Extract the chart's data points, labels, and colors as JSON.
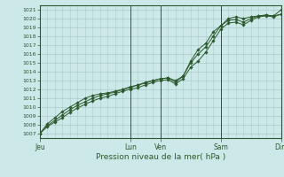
{
  "title": "",
  "xlabel": "Pression niveau de la mer( hPa )",
  "bg_color": "#cce8e8",
  "grid_color": "#aacccc",
  "line_color": "#2d5a2d",
  "marker_color": "#2d5a2d",
  "spine_color": "#2d5a2d",
  "ylim": [
    1006.5,
    1021.5
  ],
  "yticks": [
    1007,
    1008,
    1009,
    1010,
    1011,
    1012,
    1013,
    1014,
    1015,
    1016,
    1017,
    1018,
    1019,
    1020,
    1021
  ],
  "day_labels": [
    "Jeu",
    "Lun",
    "Ven",
    "Sam",
    "Dim"
  ],
  "day_positions": [
    0.0,
    0.375,
    0.5,
    0.75,
    1.0
  ],
  "series": [
    [
      1007.0,
      1007.8,
      1008.3,
      1008.8,
      1009.4,
      1009.9,
      1010.3,
      1010.7,
      1011.0,
      1011.2,
      1011.5,
      1011.8,
      1012.0,
      1012.2,
      1012.5,
      1012.8,
      1013.0,
      1013.1,
      1012.6,
      1013.2,
      1014.5,
      1015.2,
      1016.2,
      1017.5,
      1018.8,
      1019.5,
      1019.6,
      1019.3,
      1019.8,
      1020.2,
      1020.3,
      1020.2,
      1020.5
    ],
    [
      1007.0,
      1007.9,
      1008.5,
      1009.1,
      1009.7,
      1010.2,
      1010.6,
      1011.0,
      1011.3,
      1011.5,
      1011.7,
      1012.0,
      1012.2,
      1012.5,
      1012.7,
      1013.0,
      1013.2,
      1013.3,
      1013.0,
      1013.5,
      1015.0,
      1016.0,
      1016.8,
      1018.0,
      1019.2,
      1019.8,
      1019.9,
      1019.6,
      1020.0,
      1020.3,
      1020.4,
      1020.3,
      1021.0
    ],
    [
      1007.0,
      1008.1,
      1008.8,
      1009.5,
      1010.0,
      1010.5,
      1011.0,
      1011.3,
      1011.5,
      1011.6,
      1011.8,
      1012.0,
      1012.3,
      1012.5,
      1012.8,
      1013.0,
      1013.2,
      1013.3,
      1012.8,
      1013.5,
      1015.2,
      1016.5,
      1017.2,
      1018.5,
      1019.2,
      1020.0,
      1020.2,
      1020.0,
      1020.2,
      1020.3,
      1020.4,
      1020.3,
      1020.5
    ]
  ],
  "n_points": 33,
  "figsize": [
    3.2,
    2.0
  ],
  "dpi": 100
}
